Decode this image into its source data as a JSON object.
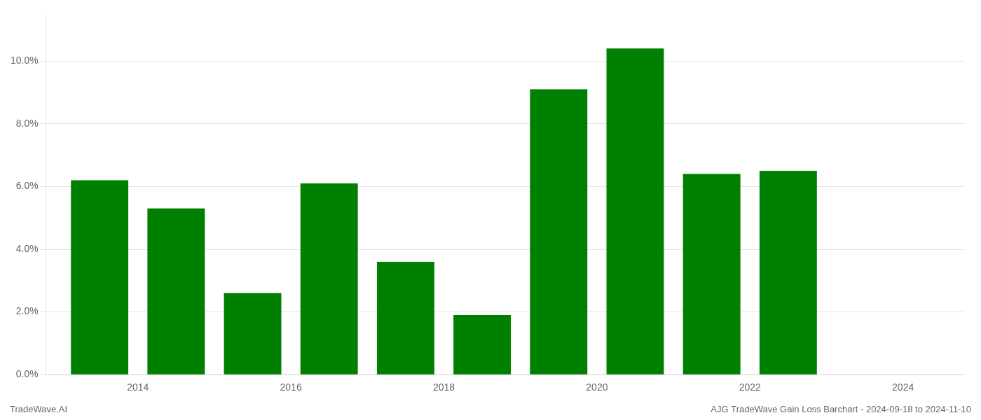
{
  "chart_data": {
    "type": "bar",
    "x": [
      2013,
      2014,
      2015,
      2016,
      2017,
      2018,
      2019,
      2020,
      2021,
      2022,
      2023
    ],
    "values": [
      0.062,
      0.053,
      0.026,
      0.061,
      0.036,
      0.019,
      0.091,
      0.104,
      0.064,
      0.065,
      0.0
    ],
    "color": "#008000",
    "xlim": [
      2012.3,
      2024.3
    ],
    "xticks": [
      {
        "value": 2013.5,
        "label": "2014"
      },
      {
        "value": 2015.5,
        "label": "2016"
      },
      {
        "value": 2017.5,
        "label": "2018"
      },
      {
        "value": 2019.5,
        "label": "2020"
      },
      {
        "value": 2021.5,
        "label": "2022"
      },
      {
        "value": 2023.5,
        "label": "2024"
      }
    ],
    "ylim": [
      0,
      0.115
    ],
    "yticks": [
      {
        "value": 0,
        "label": "0.0%"
      },
      {
        "value": 0.02,
        "label": "2.0%"
      },
      {
        "value": 0.04,
        "label": "4.0%"
      },
      {
        "value": 0.06,
        "label": "6.0%"
      },
      {
        "value": 0.08,
        "label": "8.0%"
      },
      {
        "value": 0.1,
        "label": "10.0%"
      }
    ],
    "grid": true,
    "annotations": [
      "TradeWave.AI",
      "AJG TradeWave Gain Loss Barchart - 2024-09-18 to 2024-11-10"
    ]
  }
}
